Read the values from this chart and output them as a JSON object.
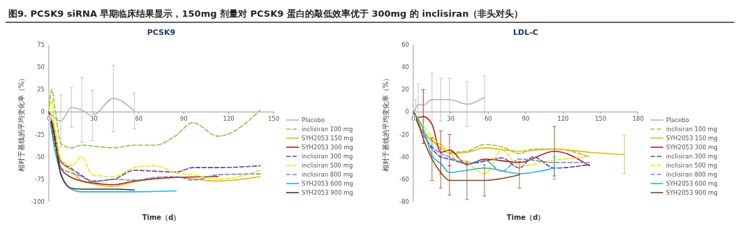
{
  "chart_data": [
    {
      "type": "line",
      "title": "PCSK9",
      "annotations": [
        "图9.   PCSK9 siRNA 早期临床结果显示，150mg 剂量对 PCSK9 蛋白的敲低效率优于 300mg 的 inclisiran（非头对头）"
      ],
      "xlabel": "Time（d）",
      "ylabel": "相对于基线的平均变化率（%）",
      "xlim": [
        0,
        150
      ],
      "xticks": [
        0,
        30,
        60,
        90,
        120,
        150
      ],
      "ylim": [
        -100,
        75
      ],
      "yticks": [
        -100,
        -75,
        -50,
        -25,
        0,
        25,
        50,
        75
      ],
      "legend": "right",
      "grid": false,
      "series": [
        {
          "name": "Placebo",
          "color": "#b5b5b5",
          "line_style": "solid",
          "x": [
            0,
            8,
            15,
            22,
            29,
            43,
            57
          ],
          "values": [
            0,
            -10,
            5,
            2,
            -4,
            15,
            1
          ],
          "errors": [
            null,
            29,
            22,
            36,
            28,
            37,
            20
          ]
        },
        {
          "name": "inclisiran 100 mg",
          "color": "#8dc63f",
          "line_style": "dashed",
          "x": [
            0,
            2,
            4,
            8,
            15,
            22,
            29,
            43,
            57,
            71,
            85,
            96,
            113,
            141
          ],
          "values": [
            0,
            25,
            5,
            -35,
            -40,
            -37,
            -38,
            -40,
            -37,
            -37,
            -26,
            -12,
            -27,
            2
          ]
        },
        {
          "name": "SYH2053 150 mg",
          "color": "#f0b400",
          "line_style": "solid",
          "x": [
            0,
            4,
            8,
            15,
            22,
            29,
            43,
            57,
            85,
            113,
            141
          ],
          "values": [
            0,
            -20,
            -55,
            -65,
            -77,
            -80,
            -83,
            -78,
            -73,
            -77,
            -72
          ]
        },
        {
          "name": "SYH2053 300 mg",
          "color": "#b01c1c",
          "line_style": "solid",
          "x": [
            0,
            4,
            8,
            15,
            22,
            29,
            43,
            57,
            85,
            113
          ],
          "values": [
            0,
            -25,
            -63,
            -73,
            -77,
            -79,
            -81,
            -77,
            -73,
            -72
          ]
        },
        {
          "name": "inclisiran 300 mg",
          "color": "#5b3fa0",
          "line_style": "dashed",
          "x": [
            0,
            8,
            15,
            22,
            29,
            43,
            57,
            71,
            85,
            96,
            113,
            141
          ],
          "values": [
            0,
            -55,
            -63,
            -71,
            -77,
            -75,
            -65,
            -66,
            -67,
            -62,
            -62,
            -60
          ]
        },
        {
          "name": "inclisiran 500 mg",
          "color": "#f2e800",
          "line_style": "dashed",
          "x": [
            0,
            2,
            4,
            8,
            15,
            22,
            29,
            43,
            57,
            71,
            85,
            96,
            113,
            141
          ],
          "values": [
            0,
            13,
            -20,
            -53,
            -60,
            -50,
            -70,
            -72,
            -62,
            -60,
            -68,
            -70,
            -75,
            -65
          ]
        },
        {
          "name": "inclisiran 800 mg",
          "color": "#6a8cc8",
          "line_style": "dashed",
          "x": [
            0,
            8,
            15,
            22,
            29,
            43,
            57,
            71,
            85,
            96,
            113,
            141
          ],
          "values": [
            0,
            -62,
            -68,
            -72,
            -78,
            -75,
            -76,
            -73,
            -72,
            -76,
            -70,
            -69
          ]
        },
        {
          "name": "SYH2053 600 mg",
          "color": "#1fb3e0",
          "line_style": "solid",
          "x": [
            0,
            4,
            8,
            15,
            22,
            29,
            43,
            57,
            85
          ],
          "values": [
            0,
            -43,
            -68,
            -86,
            -89,
            -89,
            -89,
            -89,
            -88
          ]
        },
        {
          "name": "SYH2053 900 mg",
          "color": "#5a2a1a",
          "line_style": "solid",
          "x": [
            0,
            4,
            8,
            15,
            22,
            29,
            43,
            57
          ],
          "values": [
            0,
            -30,
            -70,
            -85,
            -86,
            -86,
            -86,
            -87
          ]
        }
      ]
    },
    {
      "type": "line",
      "title": "LDL-C",
      "xlabel": "Time（d）",
      "ylabel": "相对于基线的平均变化率（%）",
      "xlim": [
        0,
        180
      ],
      "xticks": [
        0,
        30,
        60,
        90,
        120,
        150,
        180
      ],
      "ylim": [
        -80,
        60
      ],
      "yticks": [
        -80,
        -60,
        -40,
        -20,
        0,
        20,
        40,
        60
      ],
      "legend": "right",
      "grid": false,
      "series": [
        {
          "name": "Placebo",
          "color": "#b5b5b5",
          "line_style": "solid",
          "x": [
            0,
            2,
            4,
            8,
            15,
            22,
            29,
            43,
            57
          ],
          "values": [
            0,
            3,
            7,
            6,
            11,
            11,
            11,
            7,
            13
          ],
          "errors": [
            null,
            8,
            18,
            14,
            24,
            19,
            19,
            20,
            19
          ]
        },
        {
          "name": "inclisiran 100 mg",
          "color": "#8dc63f",
          "line_style": "dashed",
          "x": [
            0,
            4,
            15,
            29,
            43,
            57,
            71,
            85,
            96,
            113,
            141
          ],
          "values": [
            0,
            -10,
            -25,
            -36,
            -35,
            -29,
            -31,
            -37,
            -33,
            -33,
            -40
          ]
        },
        {
          "name": "SYH2053 150 mg",
          "color": "#f0b400",
          "line_style": "solid",
          "x": [
            0,
            4,
            15,
            22,
            29,
            43,
            57,
            85,
            113,
            141,
            169
          ],
          "values": [
            0,
            -12,
            -26,
            -29,
            -37,
            -36,
            -32,
            -35,
            -33,
            -36,
            -38
          ],
          "errors": [
            null,
            null,
            null,
            null,
            null,
            null,
            null,
            null,
            null,
            null,
            17
          ]
        },
        {
          "name": "SYH2053 300 mg",
          "color": "#b01c1c",
          "line_style": "solid",
          "x": [
            0,
            4,
            8,
            15,
            22,
            29,
            43,
            57,
            85,
            113,
            141
          ],
          "values": [
            0,
            -5,
            -4,
            -11,
            -36,
            -34,
            -47,
            -42,
            -45,
            -35,
            -48
          ],
          "errors": [
            null,
            null,
            24,
            null,
            19,
            14,
            null,
            null,
            null,
            22,
            null
          ]
        },
        {
          "name": "inclisiran 300 mg",
          "color": "#5b3fa0",
          "line_style": "dashed",
          "x": [
            0,
            8,
            22,
            29,
            43,
            57,
            71,
            85,
            96,
            113,
            141
          ],
          "values": [
            0,
            -20,
            -40,
            -42,
            -46,
            -44,
            -41,
            -50,
            -40,
            -50,
            -47
          ]
        },
        {
          "name": "inclisiran 500 mg",
          "color": "#f2e800",
          "line_style": "dashed",
          "x": [
            0,
            8,
            22,
            29,
            43,
            57,
            71,
            85,
            113,
            141
          ],
          "values": [
            0,
            -12,
            -30,
            -37,
            -45,
            -55,
            -34,
            -48,
            -43,
            -40
          ]
        },
        {
          "name": "inclisiran 800 mg",
          "color": "#6a8cc8",
          "line_style": "dashed",
          "x": [
            0,
            8,
            22,
            29,
            43,
            57,
            71,
            85,
            113,
            141
          ],
          "values": [
            0,
            -20,
            -37,
            -40,
            -46,
            -43,
            -53,
            -42,
            -45,
            -45
          ]
        },
        {
          "name": "SYH2053 600 mg",
          "color": "#1fb3e0",
          "line_style": "solid",
          "x": [
            0,
            4,
            8,
            15,
            22,
            29,
            43,
            57,
            85,
            113
          ],
          "values": [
            0,
            -7,
            -15,
            -39,
            -46,
            -54,
            -52,
            -50,
            -55,
            -50
          ],
          "errors": [
            null,
            null,
            null,
            null,
            null,
            null,
            null,
            null,
            null,
            10
          ]
        },
        {
          "name": "SYH2053 900 mg",
          "color": "#8b4513",
          "line_style": "solid",
          "x": [
            0,
            4,
            8,
            15,
            22,
            29,
            43,
            57,
            85
          ],
          "values": [
            0,
            -10,
            -24,
            -42,
            -54,
            -61,
            -61,
            -61,
            -56
          ],
          "errors": [
            null,
            null,
            null,
            19,
            14,
            13,
            17,
            14,
            12
          ]
        }
      ]
    }
  ]
}
